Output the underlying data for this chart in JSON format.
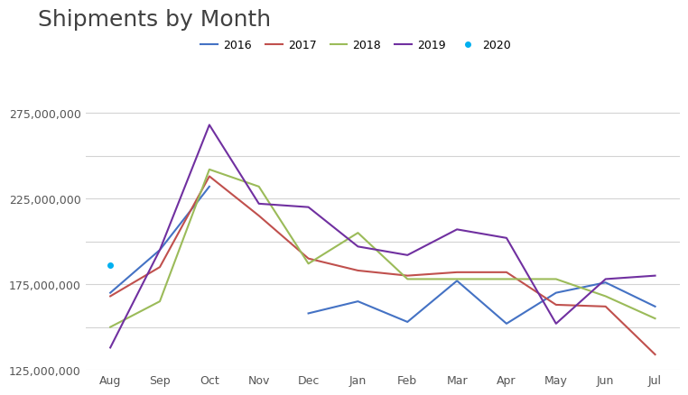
{
  "title": "Shipments by Month",
  "months": [
    "Aug",
    "Sep",
    "Oct",
    "Nov",
    "Dec",
    "Jan",
    "Feb",
    "Mar",
    "Apr",
    "May",
    "Jun",
    "Jul"
  ],
  "series": {
    "2016": {
      "color": "#4472C4",
      "data": [
        170000000,
        195000000,
        232000000,
        null,
        158000000,
        165000000,
        153000000,
        177000000,
        152000000,
        170000000,
        176000000,
        162000000
      ]
    },
    "2017": {
      "color": "#C0504D",
      "data": [
        168000000,
        185000000,
        238000000,
        215000000,
        190000000,
        183000000,
        180000000,
        182000000,
        182000000,
        163000000,
        162000000,
        134000000
      ]
    },
    "2018": {
      "color": "#9BBB59",
      "data": [
        150000000,
        165000000,
        242000000,
        232000000,
        187000000,
        205000000,
        178000000,
        178000000,
        178000000,
        178000000,
        168000000,
        155000000
      ]
    },
    "2019": {
      "color": "#7030A0",
      "data": [
        138000000,
        195000000,
        268000000,
        222000000,
        220000000,
        197000000,
        192000000,
        207000000,
        202000000,
        152000000,
        178000000,
        180000000
      ]
    },
    "2020": {
      "color": "#00B0F0",
      "data": [
        186000000,
        null,
        null,
        null,
        null,
        null,
        null,
        null,
        null,
        null,
        null,
        null
      ]
    }
  },
  "ylim": [
    125000000,
    290000000
  ],
  "ytick_grid": [
    125000000,
    150000000,
    175000000,
    200000000,
    225000000,
    250000000,
    275000000
  ],
  "ytick_labeled": [
    125000000,
    175000000,
    225000000,
    275000000
  ],
  "legend_order": [
    "2016",
    "2017",
    "2018",
    "2019",
    "2020"
  ],
  "background_color": "#ffffff",
  "title_fontsize": 18,
  "grid_color": "#D3D3D3"
}
